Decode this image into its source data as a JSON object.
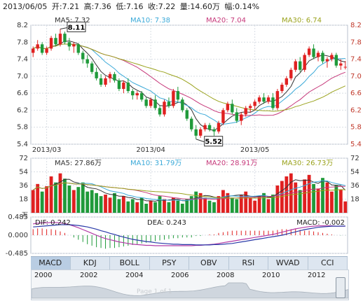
{
  "header": {
    "date": "2013/06/05",
    "open": "开:7.21",
    "high": "高:7.36",
    "low": "低:7.16",
    "close": "收:7.22",
    "volume": "量:14.60万",
    "change": "幅:0.14%"
  },
  "chart_data": [
    {
      "type": "candlestick",
      "name": "price",
      "ylim": [
        5.4,
        8.2
      ],
      "y_ticks": [
        "8.2",
        "7.8",
        "7.4",
        "7.0",
        "6.6",
        "6.2",
        "5.8",
        "5.4"
      ],
      "x_ticks": [
        "2013/03",
        "2013/04",
        "2013/05"
      ],
      "ma_legend": [
        {
          "label": "MA5: 7.32",
          "color": "#333333"
        },
        {
          "label": "MA10: 7.38",
          "color": "#3aa9d8"
        },
        {
          "label": "MA20: 7.04",
          "color": "#c6387a"
        },
        {
          "label": "MA30: 6.74",
          "color": "#9aa21c"
        }
      ],
      "annotations": {
        "max": "8.11",
        "min": "5.52"
      },
      "candles": [
        [
          7.55,
          7.7,
          7.45,
          7.65
        ],
        [
          7.65,
          7.85,
          7.6,
          7.75
        ],
        [
          7.75,
          7.8,
          7.5,
          7.55
        ],
        [
          7.55,
          7.7,
          7.5,
          7.65
        ],
        [
          7.65,
          7.95,
          7.6,
          7.9
        ],
        [
          7.9,
          8.0,
          7.7,
          7.75
        ],
        [
          7.75,
          8.11,
          7.7,
          8.0
        ],
        [
          8.0,
          8.05,
          7.75,
          7.8
        ],
        [
          7.8,
          7.9,
          7.6,
          7.7
        ],
        [
          7.7,
          7.8,
          7.55,
          7.75
        ],
        [
          7.75,
          7.78,
          7.5,
          7.55
        ],
        [
          7.55,
          7.6,
          7.3,
          7.4
        ],
        [
          7.4,
          7.5,
          7.2,
          7.3
        ],
        [
          7.3,
          7.35,
          7.05,
          7.1
        ],
        [
          7.1,
          7.2,
          6.9,
          6.95
        ],
        [
          6.95,
          7.05,
          6.75,
          6.8
        ],
        [
          6.8,
          7.0,
          6.75,
          6.95
        ],
        [
          6.95,
          7.1,
          6.85,
          7.05
        ],
        [
          7.05,
          7.1,
          6.85,
          6.9
        ],
        [
          6.9,
          6.95,
          6.65,
          6.7
        ],
        [
          6.7,
          6.9,
          6.6,
          6.85
        ],
        [
          6.85,
          6.95,
          6.6,
          6.65
        ],
        [
          6.65,
          6.7,
          6.45,
          6.55
        ],
        [
          6.55,
          6.65,
          6.45,
          6.6
        ],
        [
          6.6,
          6.65,
          6.4,
          6.45
        ],
        [
          6.45,
          6.5,
          6.25,
          6.3
        ],
        [
          6.3,
          6.5,
          6.25,
          6.45
        ],
        [
          6.45,
          6.55,
          6.2,
          6.25
        ],
        [
          6.25,
          6.3,
          6.05,
          6.1
        ],
        [
          6.1,
          6.45,
          6.05,
          6.4
        ],
        [
          6.4,
          6.5,
          6.25,
          6.3
        ],
        [
          6.3,
          6.7,
          6.25,
          6.65
        ],
        [
          6.65,
          6.75,
          6.4,
          6.45
        ],
        [
          6.45,
          6.5,
          6.15,
          6.2
        ],
        [
          6.2,
          6.25,
          5.95,
          6.0
        ],
        [
          6.0,
          6.05,
          5.7,
          5.75
        ],
        [
          5.75,
          5.85,
          5.52,
          5.6
        ],
        [
          5.6,
          5.8,
          5.55,
          5.75
        ],
        [
          5.75,
          5.9,
          5.7,
          5.85
        ],
        [
          5.85,
          5.9,
          5.7,
          5.75
        ],
        [
          5.75,
          5.8,
          5.6,
          5.7
        ],
        [
          5.7,
          5.95,
          5.65,
          5.9
        ],
        [
          5.9,
          6.25,
          5.85,
          6.2
        ],
        [
          6.2,
          6.4,
          6.15,
          6.35
        ],
        [
          6.35,
          6.45,
          6.1,
          6.15
        ],
        [
          6.15,
          6.25,
          5.9,
          5.95
        ],
        [
          5.95,
          6.15,
          5.85,
          6.1
        ],
        [
          6.1,
          6.3,
          6.05,
          6.25
        ],
        [
          6.25,
          6.35,
          6.15,
          6.3
        ],
        [
          6.3,
          6.45,
          6.2,
          6.4
        ],
        [
          6.4,
          6.55,
          6.35,
          6.5
        ],
        [
          6.5,
          6.6,
          6.35,
          6.4
        ],
        [
          6.4,
          6.55,
          6.35,
          6.5
        ],
        [
          6.5,
          6.6,
          6.2,
          6.25
        ],
        [
          6.25,
          6.7,
          6.2,
          6.65
        ],
        [
          6.65,
          6.85,
          6.6,
          6.8
        ],
        [
          6.8,
          7.0,
          6.75,
          6.95
        ],
        [
          6.95,
          7.2,
          6.9,
          7.15
        ],
        [
          7.15,
          7.4,
          7.1,
          7.35
        ],
        [
          7.35,
          7.45,
          7.1,
          7.15
        ],
        [
          7.15,
          7.55,
          7.1,
          7.5
        ],
        [
          7.5,
          7.7,
          7.45,
          7.65
        ],
        [
          7.65,
          7.75,
          7.4,
          7.45
        ],
        [
          7.45,
          7.6,
          7.35,
          7.55
        ],
        [
          7.55,
          7.6,
          7.3,
          7.35
        ],
        [
          7.35,
          7.45,
          7.2,
          7.4
        ],
        [
          7.4,
          7.55,
          7.35,
          7.5
        ],
        [
          7.5,
          7.55,
          7.2,
          7.25
        ],
        [
          7.25,
          7.4,
          7.15,
          7.3
        ],
        [
          7.21,
          7.36,
          7.16,
          7.22
        ]
      ]
    },
    {
      "type": "bar",
      "name": "volume",
      "ylim": [
        0,
        72
      ],
      "y_ticks": [
        "72",
        "54",
        "36",
        "18"
      ],
      "unit": "万",
      "ma_legend": [
        {
          "label": "MA5: 27.86万",
          "color": "#333333"
        },
        {
          "label": "MA10: 31.79万",
          "color": "#3aa9d8"
        },
        {
          "label": "MA20: 28.91万",
          "color": "#c6387a"
        },
        {
          "label": "MA30: 26.73万",
          "color": "#9aa21c"
        }
      ],
      "values": [
        30,
        38,
        28,
        35,
        48,
        40,
        52,
        45,
        36,
        30,
        34,
        40,
        28,
        30,
        26,
        22,
        24,
        20,
        26,
        18,
        22,
        15,
        18,
        14,
        20,
        12,
        16,
        14,
        22,
        18,
        14,
        20,
        16,
        12,
        18,
        22,
        28,
        26,
        20,
        16,
        14,
        22,
        30,
        26,
        20,
        18,
        24,
        28,
        20,
        16,
        22,
        26,
        18,
        24,
        36,
        42,
        48,
        52,
        40,
        30,
        44,
        50,
        38,
        32,
        46,
        40,
        28,
        36,
        30,
        15
      ]
    },
    {
      "type": "line",
      "name": "macd",
      "ylim": [
        -0.485,
        0.485
      ],
      "y_ticks": [
        "0.485",
        "0.000",
        "-0.485"
      ],
      "series": [
        {
          "name": "DIF: 0.242",
          "color": "#b23aa6",
          "values": [
            0.3,
            0.32,
            0.33,
            0.33,
            0.34,
            0.34,
            0.33,
            0.31,
            0.28,
            0.24,
            0.2,
            0.15,
            0.1,
            0.05,
            0.0,
            -0.05,
            -0.09,
            -0.12,
            -0.15,
            -0.18,
            -0.2,
            -0.22,
            -0.24,
            -0.25,
            -0.26,
            -0.27,
            -0.27,
            -0.28,
            -0.28,
            -0.28,
            -0.28,
            -0.28,
            -0.28,
            -0.28,
            -0.28,
            -0.28,
            -0.27,
            -0.27,
            -0.26,
            -0.25,
            -0.24,
            -0.22,
            -0.2,
            -0.18,
            -0.16,
            -0.14,
            -0.12,
            -0.1,
            -0.08,
            -0.06,
            -0.04,
            -0.02,
            0.0,
            0.02,
            0.05,
            0.08,
            0.11,
            0.14,
            0.17,
            0.19,
            0.21,
            0.23,
            0.24,
            0.25,
            0.25,
            0.25,
            0.25,
            0.24,
            0.24,
            0.242
          ]
        },
        {
          "name": "DEA: 0.243",
          "color": "#2a3aa8",
          "values": [
            0.22,
            0.23,
            0.24,
            0.25,
            0.26,
            0.27,
            0.28,
            0.28,
            0.28,
            0.27,
            0.26,
            0.24,
            0.22,
            0.19,
            0.16,
            0.12,
            0.09,
            0.05,
            0.02,
            -0.02,
            -0.05,
            -0.08,
            -0.11,
            -0.13,
            -0.15,
            -0.17,
            -0.18,
            -0.2,
            -0.21,
            -0.22,
            -0.23,
            -0.24,
            -0.24,
            -0.25,
            -0.25,
            -0.25,
            -0.26,
            -0.26,
            -0.26,
            -0.26,
            -0.25,
            -0.25,
            -0.24,
            -0.23,
            -0.22,
            -0.2,
            -0.18,
            -0.16,
            -0.14,
            -0.12,
            -0.1,
            -0.08,
            -0.06,
            -0.04,
            -0.02,
            0.0,
            0.03,
            0.06,
            0.09,
            0.12,
            0.15,
            0.17,
            0.19,
            0.21,
            0.22,
            0.23,
            0.24,
            0.24,
            0.243,
            0.243
          ]
        }
      ],
      "macd_label": "MACD: -0.002",
      "axis_unit_label": "万"
    }
  ],
  "tabs": [
    "MACD",
    "KDJ",
    "BOLL",
    "PSY",
    "OBV",
    "RSI",
    "WVAD",
    "CCI"
  ],
  "active_tab": "MACD",
  "timeline": {
    "years": [
      "2000",
      "2002",
      "2004",
      "2006",
      "2008",
      "2010",
      "2012"
    ],
    "watermark": "Page 1 of 1"
  },
  "colors": {
    "up": "#e02020",
    "down": "#1f9a3a",
    "grid": "#d8dde4",
    "axis_text": "#333333",
    "right_axis_text": "#c0392b"
  }
}
